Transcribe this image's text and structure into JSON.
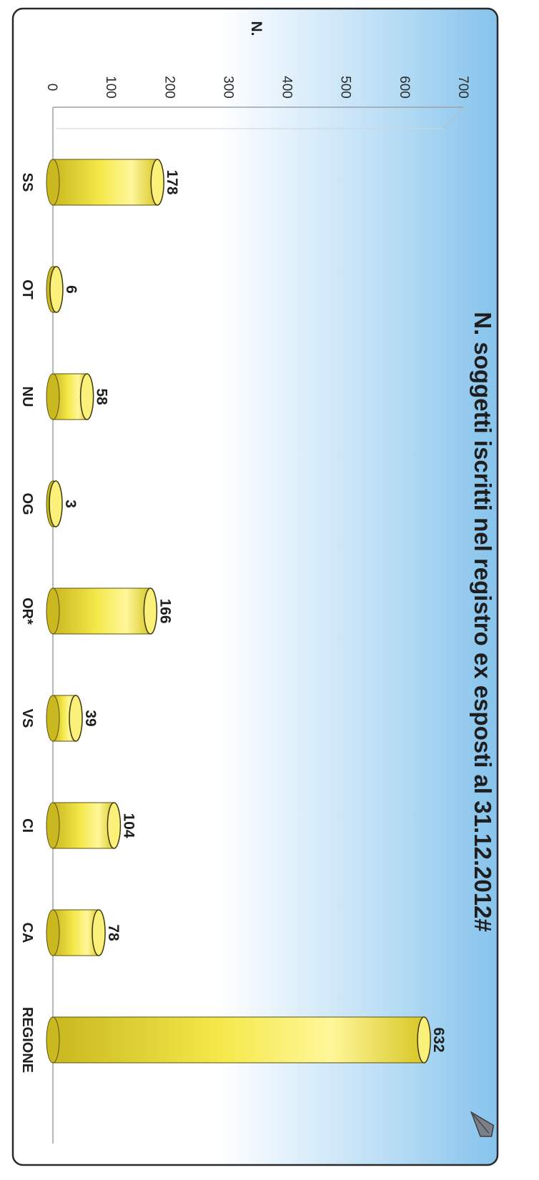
{
  "chart_data": {
    "type": "bar",
    "title": "N. soggetti iscritti nel registro ex esposti al 31.12.2012#",
    "ylabel": "N.",
    "xlabel": "",
    "categories": [
      "SS",
      "OT",
      "NU",
      "OG",
      "OR*",
      "VS",
      "CI",
      "CA",
      "REGIONE"
    ],
    "values": [
      178,
      6,
      58,
      3,
      166,
      39,
      104,
      78,
      632
    ],
    "ylim": [
      0,
      700
    ],
    "yticks": [
      0,
      100,
      200,
      300,
      400,
      500,
      600,
      700
    ],
    "grid": false,
    "legend": "none",
    "orientation": "rotated 90 degrees clockwise",
    "bar_style": "3d-cylinder",
    "colors": {
      "bar": "#f4e84a",
      "bar_highlight": "#fff79a",
      "bar_shadow": "#c9b81f",
      "bar_top": "#fbf07a",
      "background_light": "#ffffff",
      "background_dark": "#8ec8ee",
      "frame": "#2a2a2a"
    }
  }
}
